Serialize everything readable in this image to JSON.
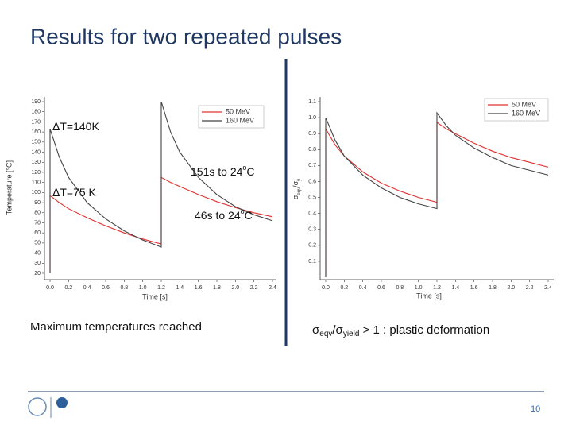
{
  "slide": {
    "title": "Results for two repeated pulses",
    "captions": [
      [
        "Maximum temperatures reached"
      ],
      [
        "σ",
        "eqv",
        "/σ",
        "yield",
        " > 1 : plastic deformation"
      ]
    ],
    "page_number": "10"
  },
  "chart_data": [
    {
      "type": "line",
      "x_label": "Time [s]",
      "y_label": "Temperature [°C]",
      "x": [
        0,
        0,
        0.1,
        0.2,
        0.4,
        0.6,
        0.8,
        1.0,
        1.2,
        1.2,
        1.3,
        1.4,
        1.6,
        1.8,
        2.0,
        2.2,
        2.4
      ],
      "series": [
        {
          "name": "50 MeV",
          "color": "#e03030",
          "values": [
            20,
            97,
            90,
            84,
            75,
            67,
            60,
            54,
            49,
            115,
            110,
            106,
            98,
            91,
            85,
            80,
            76
          ]
        },
        {
          "name": "160 MeV",
          "color": "#444444",
          "values": [
            20,
            163,
            135,
            115,
            90,
            74,
            62,
            53,
            46,
            190,
            160,
            140,
            115,
            98,
            86,
            78,
            72
          ]
        }
      ],
      "xlim": [
        0,
        2.4
      ],
      "xticks": [
        {
          "value": 0,
          "label": "0.0"
        },
        0.2,
        0.4,
        0.6,
        0.8,
        {
          "value": 1,
          "label": "1.0"
        },
        1.2,
        1.4,
        1.6,
        1.8,
        {
          "value": 2,
          "label": "2.0"
        },
        2.2,
        2.4
      ],
      "ylim": [
        20,
        190
      ],
      "yticks": [
        20,
        30,
        40,
        50,
        60,
        70,
        80,
        90,
        100,
        110,
        120,
        130,
        140,
        150,
        160,
        170,
        180,
        190
      ],
      "legend": "top-right",
      "annotations": [
        [
          "ΔT=140K"
        ],
        [
          "151s to 24",
          "o",
          "C"
        ],
        [
          "ΔT=75 K"
        ],
        [
          "46s to 24",
          "o",
          "C"
        ]
      ]
    },
    {
      "type": "line",
      "x_label": "Time [s]",
      "y_label": [
        "σ",
        "eqv",
        "/σ",
        "y"
      ],
      "x": [
        0,
        0,
        0.1,
        0.2,
        0.4,
        0.6,
        0.8,
        1.0,
        1.2,
        1.2,
        1.3,
        1.4,
        1.6,
        1.8,
        2.0,
        2.2,
        2.4
      ],
      "series": [
        {
          "name": "50 MeV",
          "color": "#e03030",
          "values": [
            0,
            0.93,
            0.83,
            0.76,
            0.66,
            0.59,
            0.54,
            0.5,
            0.47,
            0.97,
            0.93,
            0.9,
            0.84,
            0.79,
            0.75,
            0.72,
            0.69
          ]
        },
        {
          "name": "160 MeV",
          "color": "#444444",
          "values": [
            0,
            1.0,
            0.86,
            0.76,
            0.64,
            0.56,
            0.5,
            0.46,
            0.43,
            1.03,
            0.95,
            0.89,
            0.81,
            0.75,
            0.7,
            0.67,
            0.64
          ]
        }
      ],
      "xlim": [
        0,
        2.4
      ],
      "xticks": [
        {
          "value": 0,
          "label": "0.0"
        },
        0.2,
        0.4,
        0.6,
        0.8,
        {
          "value": 1,
          "label": "1.0"
        },
        1.2,
        1.4,
        1.6,
        1.8,
        {
          "value": 2,
          "label": "2.0"
        },
        2.2,
        2.4
      ],
      "ylim": [
        0,
        1.1
      ],
      "yticks": [
        0.1,
        0.2,
        0.3,
        0.4,
        0.5,
        0.6,
        0.7,
        0.8,
        0.9,
        {
          "value": 1,
          "label": "1.0"
        },
        1.1
      ],
      "legend": "top-right",
      "annotations": []
    }
  ]
}
